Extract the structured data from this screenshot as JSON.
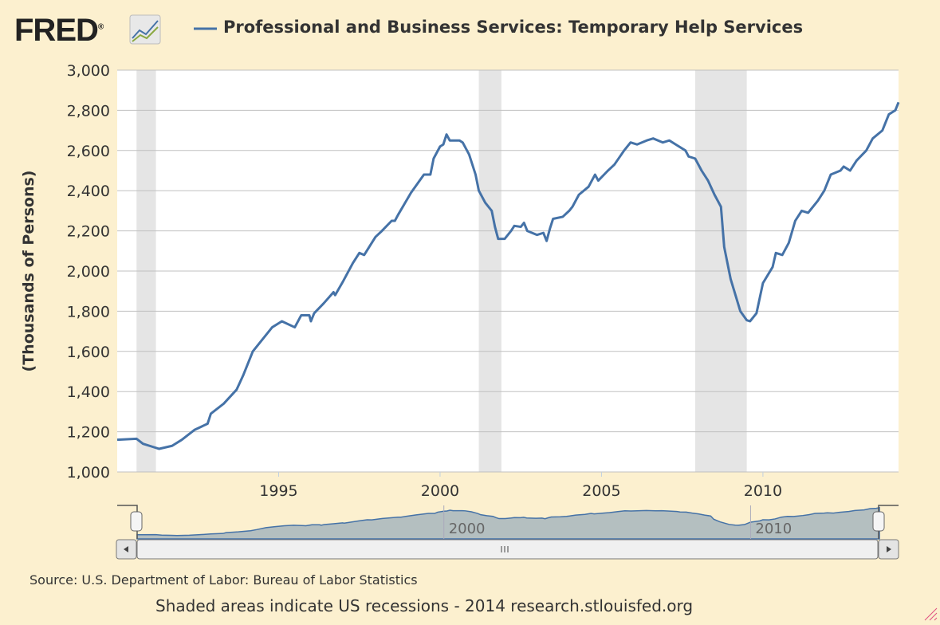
{
  "header": {
    "logo_text": "FRED",
    "logo_mark": "®"
  },
  "chart_data": {
    "type": "line",
    "title": "Professional and Business Services: Temporary Help Services",
    "ylabel": "(Thousands of Persons)",
    "xlabel": "",
    "ylim": [
      1000,
      3000
    ],
    "xlim": [
      1990.0,
      2014.2
    ],
    "yticks": [
      "1,000",
      "1,200",
      "1,400",
      "1,600",
      "1,800",
      "2,000",
      "2,200",
      "2,400",
      "2,600",
      "2,800",
      "3,000"
    ],
    "xticks": [
      "1995",
      "2000",
      "2005",
      "2010"
    ],
    "grid": true,
    "series_color": "#4572a7",
    "recessions": [
      [
        1990.6,
        1991.2
      ],
      [
        2001.2,
        2001.9
      ],
      [
        2007.9,
        2009.5
      ]
    ],
    "series": [
      {
        "name": "Professional and Business Services: Temporary Help Services",
        "points": [
          [
            1990.0,
            1160
          ],
          [
            1990.6,
            1165
          ],
          [
            1990.8,
            1140
          ],
          [
            1991.1,
            1125
          ],
          [
            1991.3,
            1115
          ],
          [
            1991.7,
            1130
          ],
          [
            1992.0,
            1160
          ],
          [
            1992.4,
            1210
          ],
          [
            1992.8,
            1240
          ],
          [
            1992.9,
            1290
          ],
          [
            1993.3,
            1340
          ],
          [
            1993.7,
            1410
          ],
          [
            1993.9,
            1480
          ],
          [
            1994.2,
            1600
          ],
          [
            1994.5,
            1660
          ],
          [
            1994.8,
            1720
          ],
          [
            1995.1,
            1750
          ],
          [
            1995.5,
            1720
          ],
          [
            1995.7,
            1780
          ],
          [
            1995.95,
            1780
          ],
          [
            1996.0,
            1750
          ],
          [
            1996.1,
            1790
          ],
          [
            1996.4,
            1840
          ],
          [
            1996.7,
            1895
          ],
          [
            1996.75,
            1880
          ],
          [
            1997.0,
            1950
          ],
          [
            1997.3,
            2040
          ],
          [
            1997.5,
            2090
          ],
          [
            1997.65,
            2080
          ],
          [
            1998.0,
            2170
          ],
          [
            1998.2,
            2200
          ],
          [
            1998.5,
            2250
          ],
          [
            1998.6,
            2250
          ],
          [
            1998.7,
            2280
          ],
          [
            1999.1,
            2390
          ],
          [
            1999.5,
            2480
          ],
          [
            1999.7,
            2480
          ],
          [
            1999.8,
            2560
          ],
          [
            2000.0,
            2620
          ],
          [
            2000.1,
            2630
          ],
          [
            2000.2,
            2680
          ],
          [
            2000.3,
            2650
          ],
          [
            2000.6,
            2650
          ],
          [
            2000.7,
            2640
          ],
          [
            2000.9,
            2580
          ],
          [
            2001.1,
            2480
          ],
          [
            2001.2,
            2400
          ],
          [
            2001.4,
            2340
          ],
          [
            2001.6,
            2300
          ],
          [
            2001.7,
            2220
          ],
          [
            2001.8,
            2160
          ],
          [
            2002.0,
            2160
          ],
          [
            2002.2,
            2200
          ],
          [
            2002.3,
            2225
          ],
          [
            2002.5,
            2220
          ],
          [
            2002.6,
            2240
          ],
          [
            2002.7,
            2200
          ],
          [
            2003.0,
            2180
          ],
          [
            2003.2,
            2190
          ],
          [
            2003.3,
            2150
          ],
          [
            2003.4,
            2210
          ],
          [
            2003.5,
            2260
          ],
          [
            2003.8,
            2270
          ],
          [
            2004.0,
            2300
          ],
          [
            2004.1,
            2320
          ],
          [
            2004.3,
            2380
          ],
          [
            2004.6,
            2420
          ],
          [
            2004.8,
            2480
          ],
          [
            2004.9,
            2450
          ],
          [
            2005.2,
            2500
          ],
          [
            2005.4,
            2530
          ],
          [
            2005.7,
            2600
          ],
          [
            2005.9,
            2640
          ],
          [
            2006.1,
            2630
          ],
          [
            2006.4,
            2650
          ],
          [
            2006.6,
            2660
          ],
          [
            2006.9,
            2640
          ],
          [
            2007.1,
            2650
          ],
          [
            2007.3,
            2630
          ],
          [
            2007.6,
            2600
          ],
          [
            2007.7,
            2570
          ],
          [
            2007.9,
            2560
          ],
          [
            2008.1,
            2500
          ],
          [
            2008.3,
            2450
          ],
          [
            2008.5,
            2380
          ],
          [
            2008.7,
            2320
          ],
          [
            2008.8,
            2120
          ],
          [
            2009.0,
            1960
          ],
          [
            2009.3,
            1800
          ],
          [
            2009.5,
            1755
          ],
          [
            2009.6,
            1750
          ],
          [
            2009.8,
            1790
          ],
          [
            2010.0,
            1940
          ],
          [
            2010.3,
            2020
          ],
          [
            2010.4,
            2090
          ],
          [
            2010.6,
            2080
          ],
          [
            2010.8,
            2140
          ],
          [
            2011.0,
            2250
          ],
          [
            2011.2,
            2300
          ],
          [
            2011.4,
            2290
          ],
          [
            2011.7,
            2350
          ],
          [
            2011.9,
            2400
          ],
          [
            2012.1,
            2480
          ],
          [
            2012.4,
            2500
          ],
          [
            2012.5,
            2520
          ],
          [
            2012.7,
            2500
          ],
          [
            2012.9,
            2550
          ],
          [
            2013.2,
            2600
          ],
          [
            2013.4,
            2660
          ],
          [
            2013.7,
            2700
          ],
          [
            2013.9,
            2780
          ],
          [
            2014.1,
            2800
          ],
          [
            2014.2,
            2840
          ]
        ]
      }
    ]
  },
  "navigator": {
    "labels": [
      "2000",
      "2010"
    ]
  },
  "source": "Source: U.S. Department of Labor: Bureau of Labor Statistics",
  "footer": "Shaded areas indicate US recessions - 2014 research.stlouisfed.org"
}
